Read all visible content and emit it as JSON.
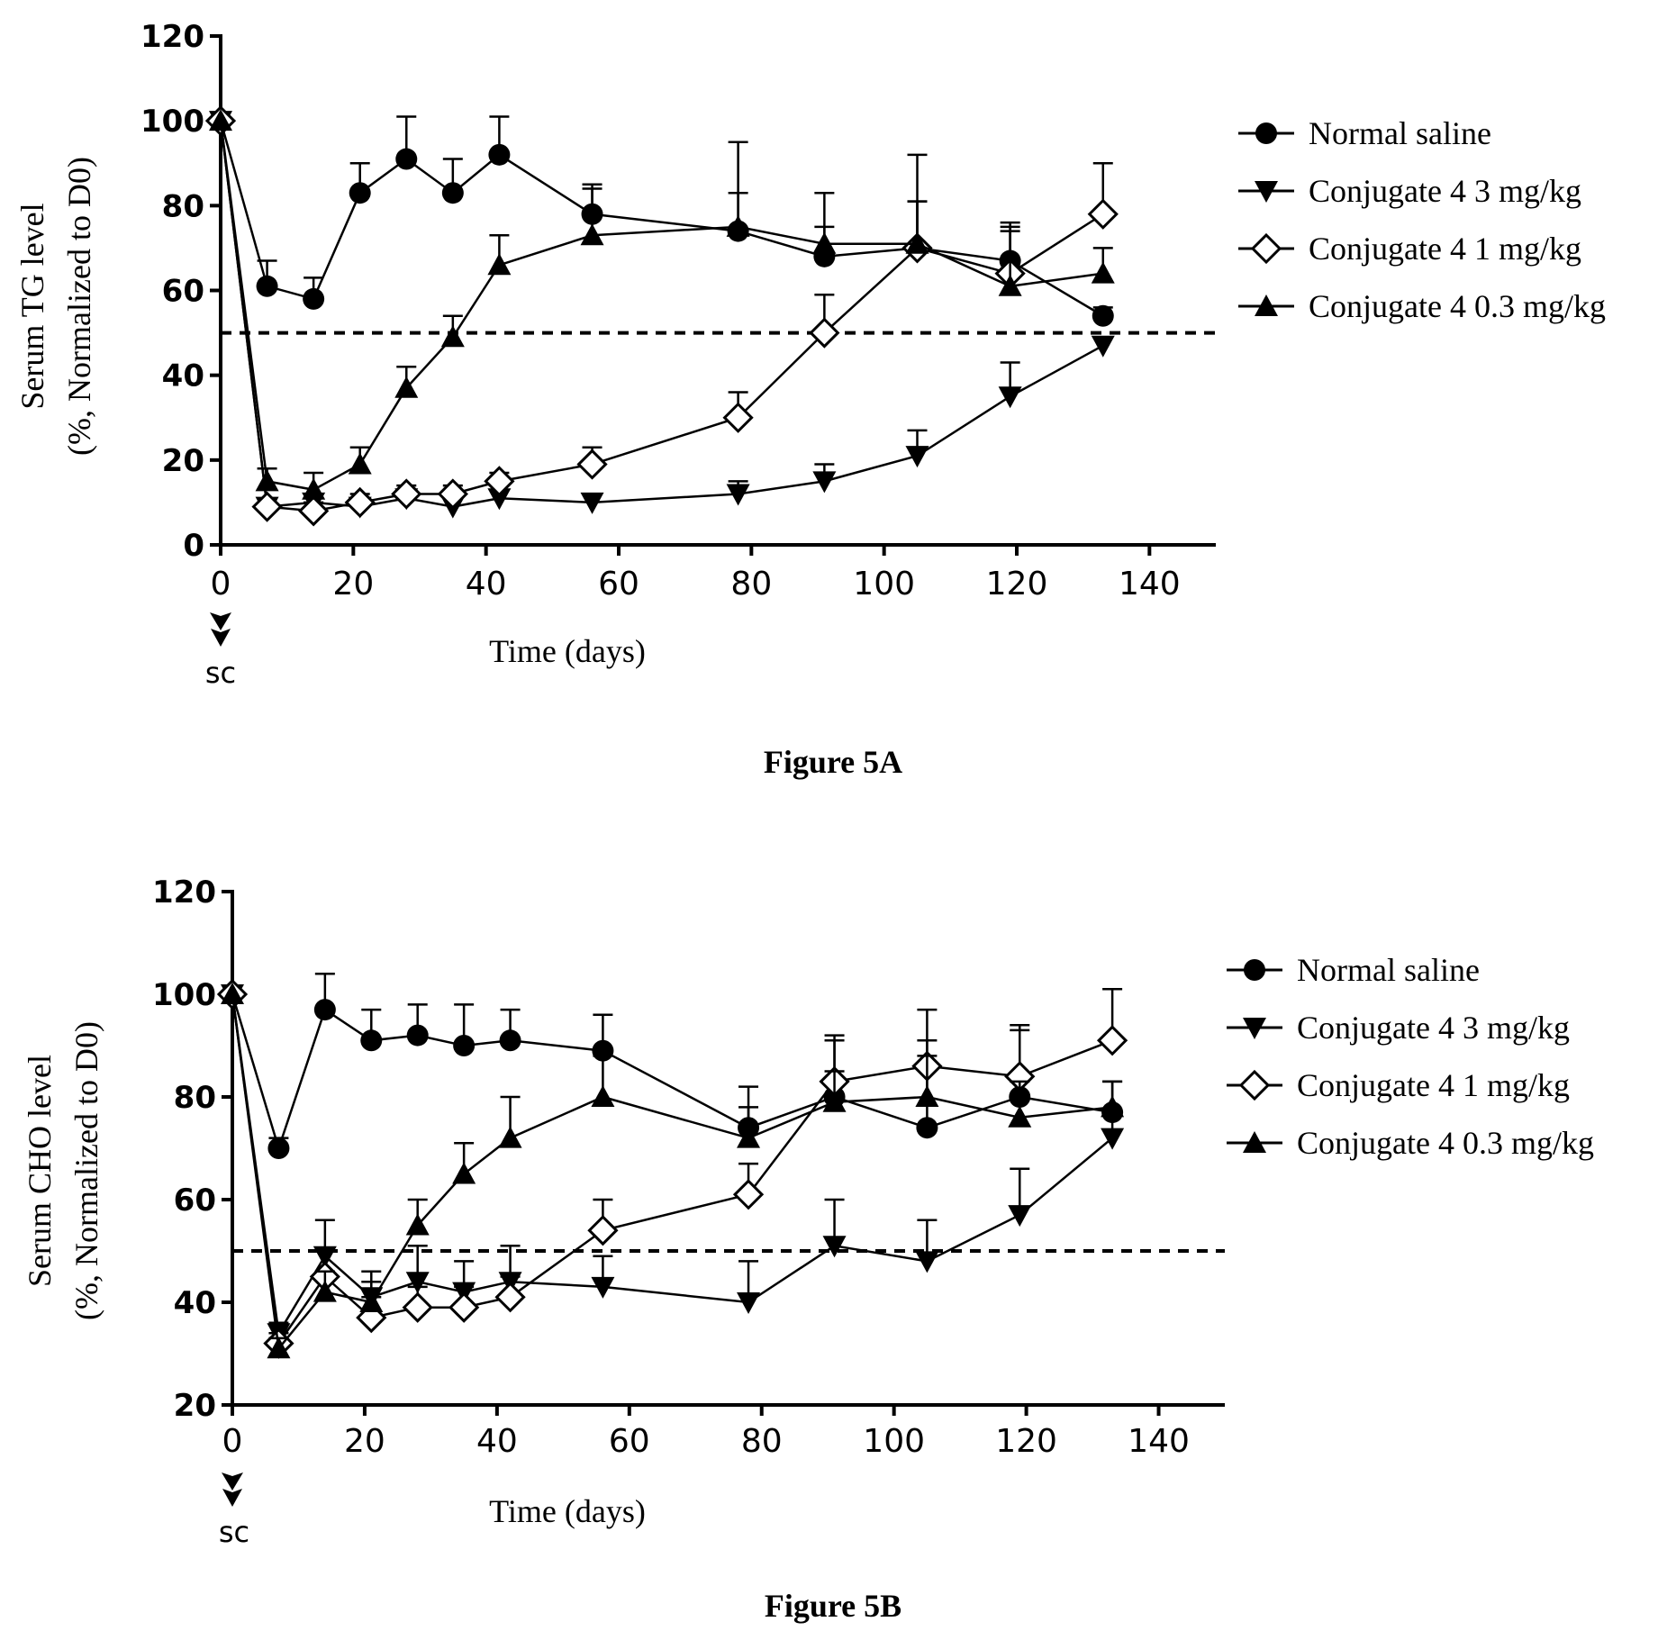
{
  "chart_data": [
    {
      "type": "line",
      "caption": "Figure 5A",
      "xlabel": "Time (days)",
      "ylabel_line1": "Serum TG level",
      "ylabel_line2": "(%, Normalized to D0)",
      "xlim": [
        0,
        150
      ],
      "ylim": [
        0,
        120
      ],
      "x_ticks": [
        0,
        20,
        40,
        60,
        80,
        100,
        120,
        140
      ],
      "y_ticks": [
        0,
        20,
        40,
        60,
        80,
        100,
        120
      ],
      "reference_line": 50,
      "dose_annotation": "sc",
      "grid": false,
      "legend_position": "right",
      "series": [
        {
          "name": "Normal saline",
          "marker": "circle",
          "x": [
            0,
            7,
            14,
            21,
            28,
            35,
            42,
            56,
            78,
            91,
            105,
            119,
            133
          ],
          "y": [
            100,
            61,
            58,
            83,
            91,
            83,
            92,
            78,
            74,
            68,
            70,
            67,
            54
          ],
          "err": [
            0,
            6,
            5,
            7,
            10,
            8,
            9,
            7,
            21,
            15,
            22,
            9,
            2
          ]
        },
        {
          "name": "Conjugate 4 3 mg/kg",
          "marker": "triangle-down",
          "x": [
            0,
            7,
            14,
            21,
            28,
            35,
            42,
            56,
            78,
            91,
            105,
            119,
            133
          ],
          "y": [
            100,
            9,
            10,
            9,
            11,
            9,
            11,
            10,
            12,
            15,
            21,
            35,
            47
          ],
          "err": [
            0,
            2,
            2,
            2,
            2,
            2,
            2,
            2,
            3,
            4,
            6,
            8,
            2
          ]
        },
        {
          "name": "Conjugate 4 1 mg/kg",
          "marker": "diamond-open",
          "x": [
            0,
            7,
            14,
            21,
            28,
            35,
            42,
            56,
            78,
            91,
            105,
            119,
            133
          ],
          "y": [
            100,
            9,
            8,
            10,
            12,
            12,
            15,
            19,
            30,
            50,
            70,
            64,
            78
          ],
          "err": [
            0,
            2,
            2,
            2,
            2,
            2,
            2,
            4,
            6,
            9,
            11,
            11,
            12
          ]
        },
        {
          "name": "Conjugate 4 0.3 mg/kg",
          "marker": "triangle-up",
          "x": [
            0,
            7,
            14,
            21,
            28,
            35,
            42,
            56,
            78,
            91,
            105,
            119,
            133
          ],
          "y": [
            100,
            15,
            13,
            19,
            37,
            49,
            66,
            73,
            75,
            71,
            71,
            61,
            64
          ],
          "err": [
            0,
            3,
            4,
            4,
            5,
            5,
            7,
            11,
            8,
            4,
            10,
            13,
            6
          ]
        }
      ]
    },
    {
      "type": "line",
      "caption": "Figure 5B",
      "xlabel": "Time (days)",
      "ylabel_line1": "Serum CHO level",
      "ylabel_line2": "(%, Normalized to D0)",
      "xlim": [
        0,
        150
      ],
      "ylim": [
        20,
        120
      ],
      "x_ticks": [
        0,
        20,
        40,
        60,
        80,
        100,
        120,
        140
      ],
      "y_ticks": [
        20,
        40,
        60,
        80,
        100,
        120
      ],
      "reference_line": 50,
      "dose_annotation": "sc",
      "grid": false,
      "legend_position": "right",
      "series": [
        {
          "name": "Normal saline",
          "marker": "circle",
          "x": [
            0,
            7,
            14,
            21,
            28,
            35,
            42,
            56,
            78,
            91,
            105,
            119,
            133
          ],
          "y": [
            100,
            70,
            97,
            91,
            92,
            90,
            91,
            89,
            74,
            80,
            74,
            80,
            77
          ],
          "err": [
            0,
            2,
            7,
            6,
            6,
            8,
            6,
            7,
            8,
            11,
            17,
            13,
            6
          ]
        },
        {
          "name": "Conjugate 4 3 mg/kg",
          "marker": "triangle-down",
          "x": [
            0,
            7,
            14,
            21,
            28,
            35,
            42,
            56,
            78,
            91,
            105,
            119,
            133
          ],
          "y": [
            100,
            34,
            49,
            41,
            44,
            42,
            44,
            43,
            40,
            51,
            48,
            57,
            72
          ],
          "err": [
            0,
            2,
            7,
            5,
            7,
            6,
            7,
            6,
            8,
            9,
            8,
            9,
            5
          ]
        },
        {
          "name": "Conjugate 4 1 mg/kg",
          "marker": "diamond-open",
          "x": [
            0,
            7,
            14,
            21,
            28,
            35,
            42,
            56,
            78,
            91,
            105,
            119,
            133
          ],
          "y": [
            100,
            32,
            45,
            37,
            39,
            39,
            41,
            54,
            61,
            83,
            86,
            84,
            91
          ],
          "err": [
            0,
            2,
            5,
            4,
            4,
            4,
            4,
            6,
            6,
            9,
            11,
            10,
            10
          ]
        },
        {
          "name": "Conjugate 4 0.3 mg/kg",
          "marker": "triangle-up",
          "x": [
            0,
            7,
            14,
            21,
            28,
            35,
            42,
            56,
            78,
            91,
            105,
            119,
            133
          ],
          "y": [
            100,
            31,
            42,
            40,
            55,
            65,
            72,
            80,
            72,
            79,
            80,
            76,
            78
          ],
          "err": [
            0,
            2,
            4,
            4,
            5,
            6,
            8,
            8,
            6,
            6,
            8,
            7,
            5
          ]
        }
      ]
    }
  ]
}
